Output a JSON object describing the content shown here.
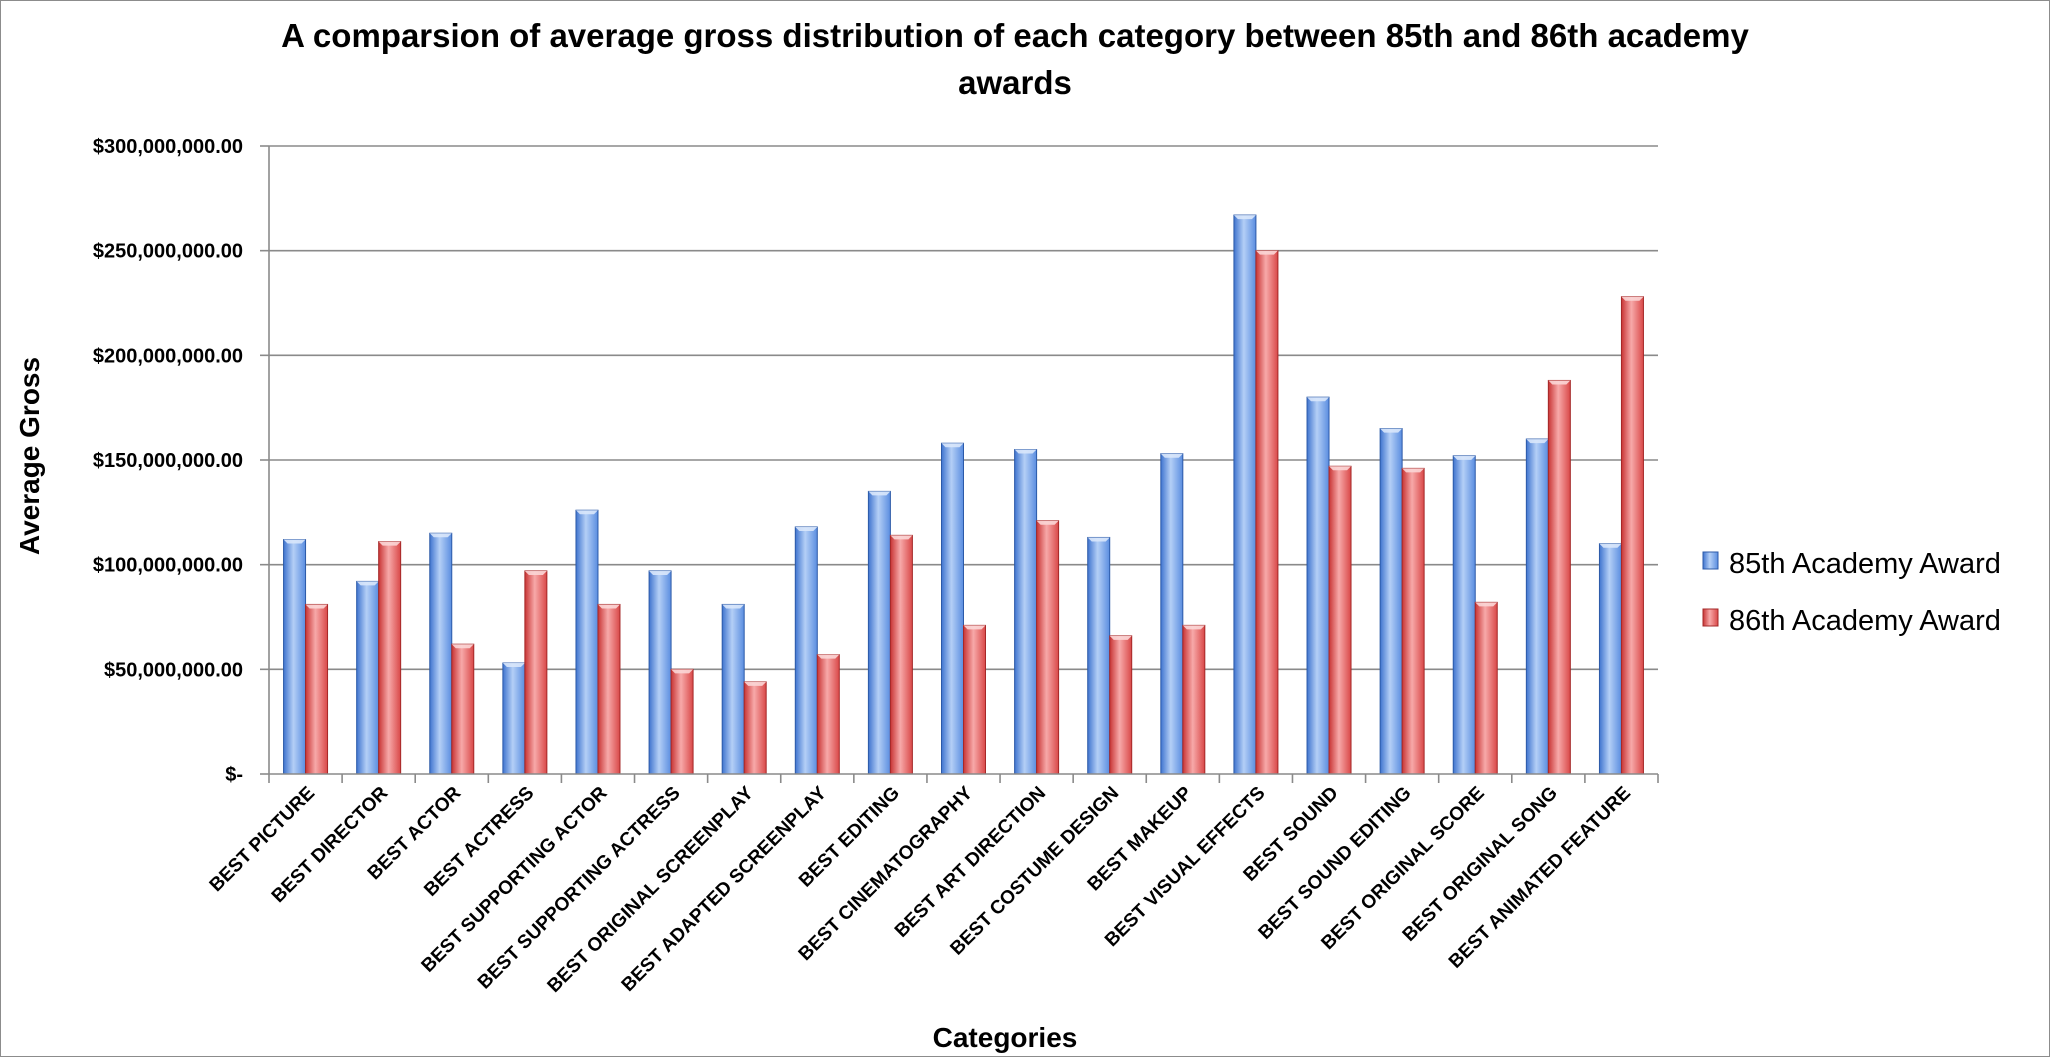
{
  "chart_data": {
    "type": "bar",
    "title": "A comparsion of average gross distribution of each category between 85th and 86th academy awards",
    "title_lines": [
      "A comparsion of average gross distribution of each category between 85th and 86th academy",
      "awards"
    ],
    "xlabel": "Categories",
    "ylabel": "Average Gross",
    "ylim": [
      0,
      300000000
    ],
    "yticks": [
      0,
      50000000,
      100000000,
      150000000,
      200000000,
      250000000,
      300000000
    ],
    "ytick_labels": [
      "$-",
      "$50,000,000.00",
      "$100,000,000.00",
      "$150,000,000.00",
      "$200,000,000.00",
      "$250,000,000.00",
      "$300,000,000.00"
    ],
    "grid": true,
    "legend_position": "right",
    "categories": [
      "BEST PICTURE",
      "BEST DIRECTOR",
      "BEST ACTOR",
      "BEST ACTRESS",
      "BEST SUPPORTING ACTOR",
      "BEST SUPPORTING ACTRESS",
      "BEST ORIGINAL SCREENPLAY",
      "BEST ADAPTED SCREENPLAY",
      "BEST EDITING",
      "BEST CINEMATOGRAPHY",
      "BEST ART DIRECTION",
      "BEST COSTUME DESIGN",
      "BEST MAKEUP",
      "BEST VISUAL EFFECTS",
      "BEST SOUND",
      "BEST SOUND EDITING",
      "BEST ORIGINAL SCORE",
      "BEST ORIGINAL SONG",
      "BEST ANIMATED FEATURE"
    ],
    "series": [
      {
        "name": "85th Academy Award",
        "color": "#6f9fe6",
        "values": [
          112000000,
          92000000,
          115000000,
          53000000,
          126000000,
          97000000,
          81000000,
          118000000,
          135000000,
          158000000,
          155000000,
          113000000,
          153000000,
          267000000,
          180000000,
          165000000,
          152000000,
          160000000,
          110000000
        ]
      },
      {
        "name": "86th Academy Award",
        "color": "#e45a5a",
        "values": [
          81000000,
          111000000,
          62000000,
          97000000,
          81000000,
          50000000,
          44000000,
          57000000,
          114000000,
          71000000,
          121000000,
          66000000,
          71000000,
          250000000,
          147000000,
          146000000,
          82000000,
          188000000,
          228000000
        ]
      }
    ]
  }
}
